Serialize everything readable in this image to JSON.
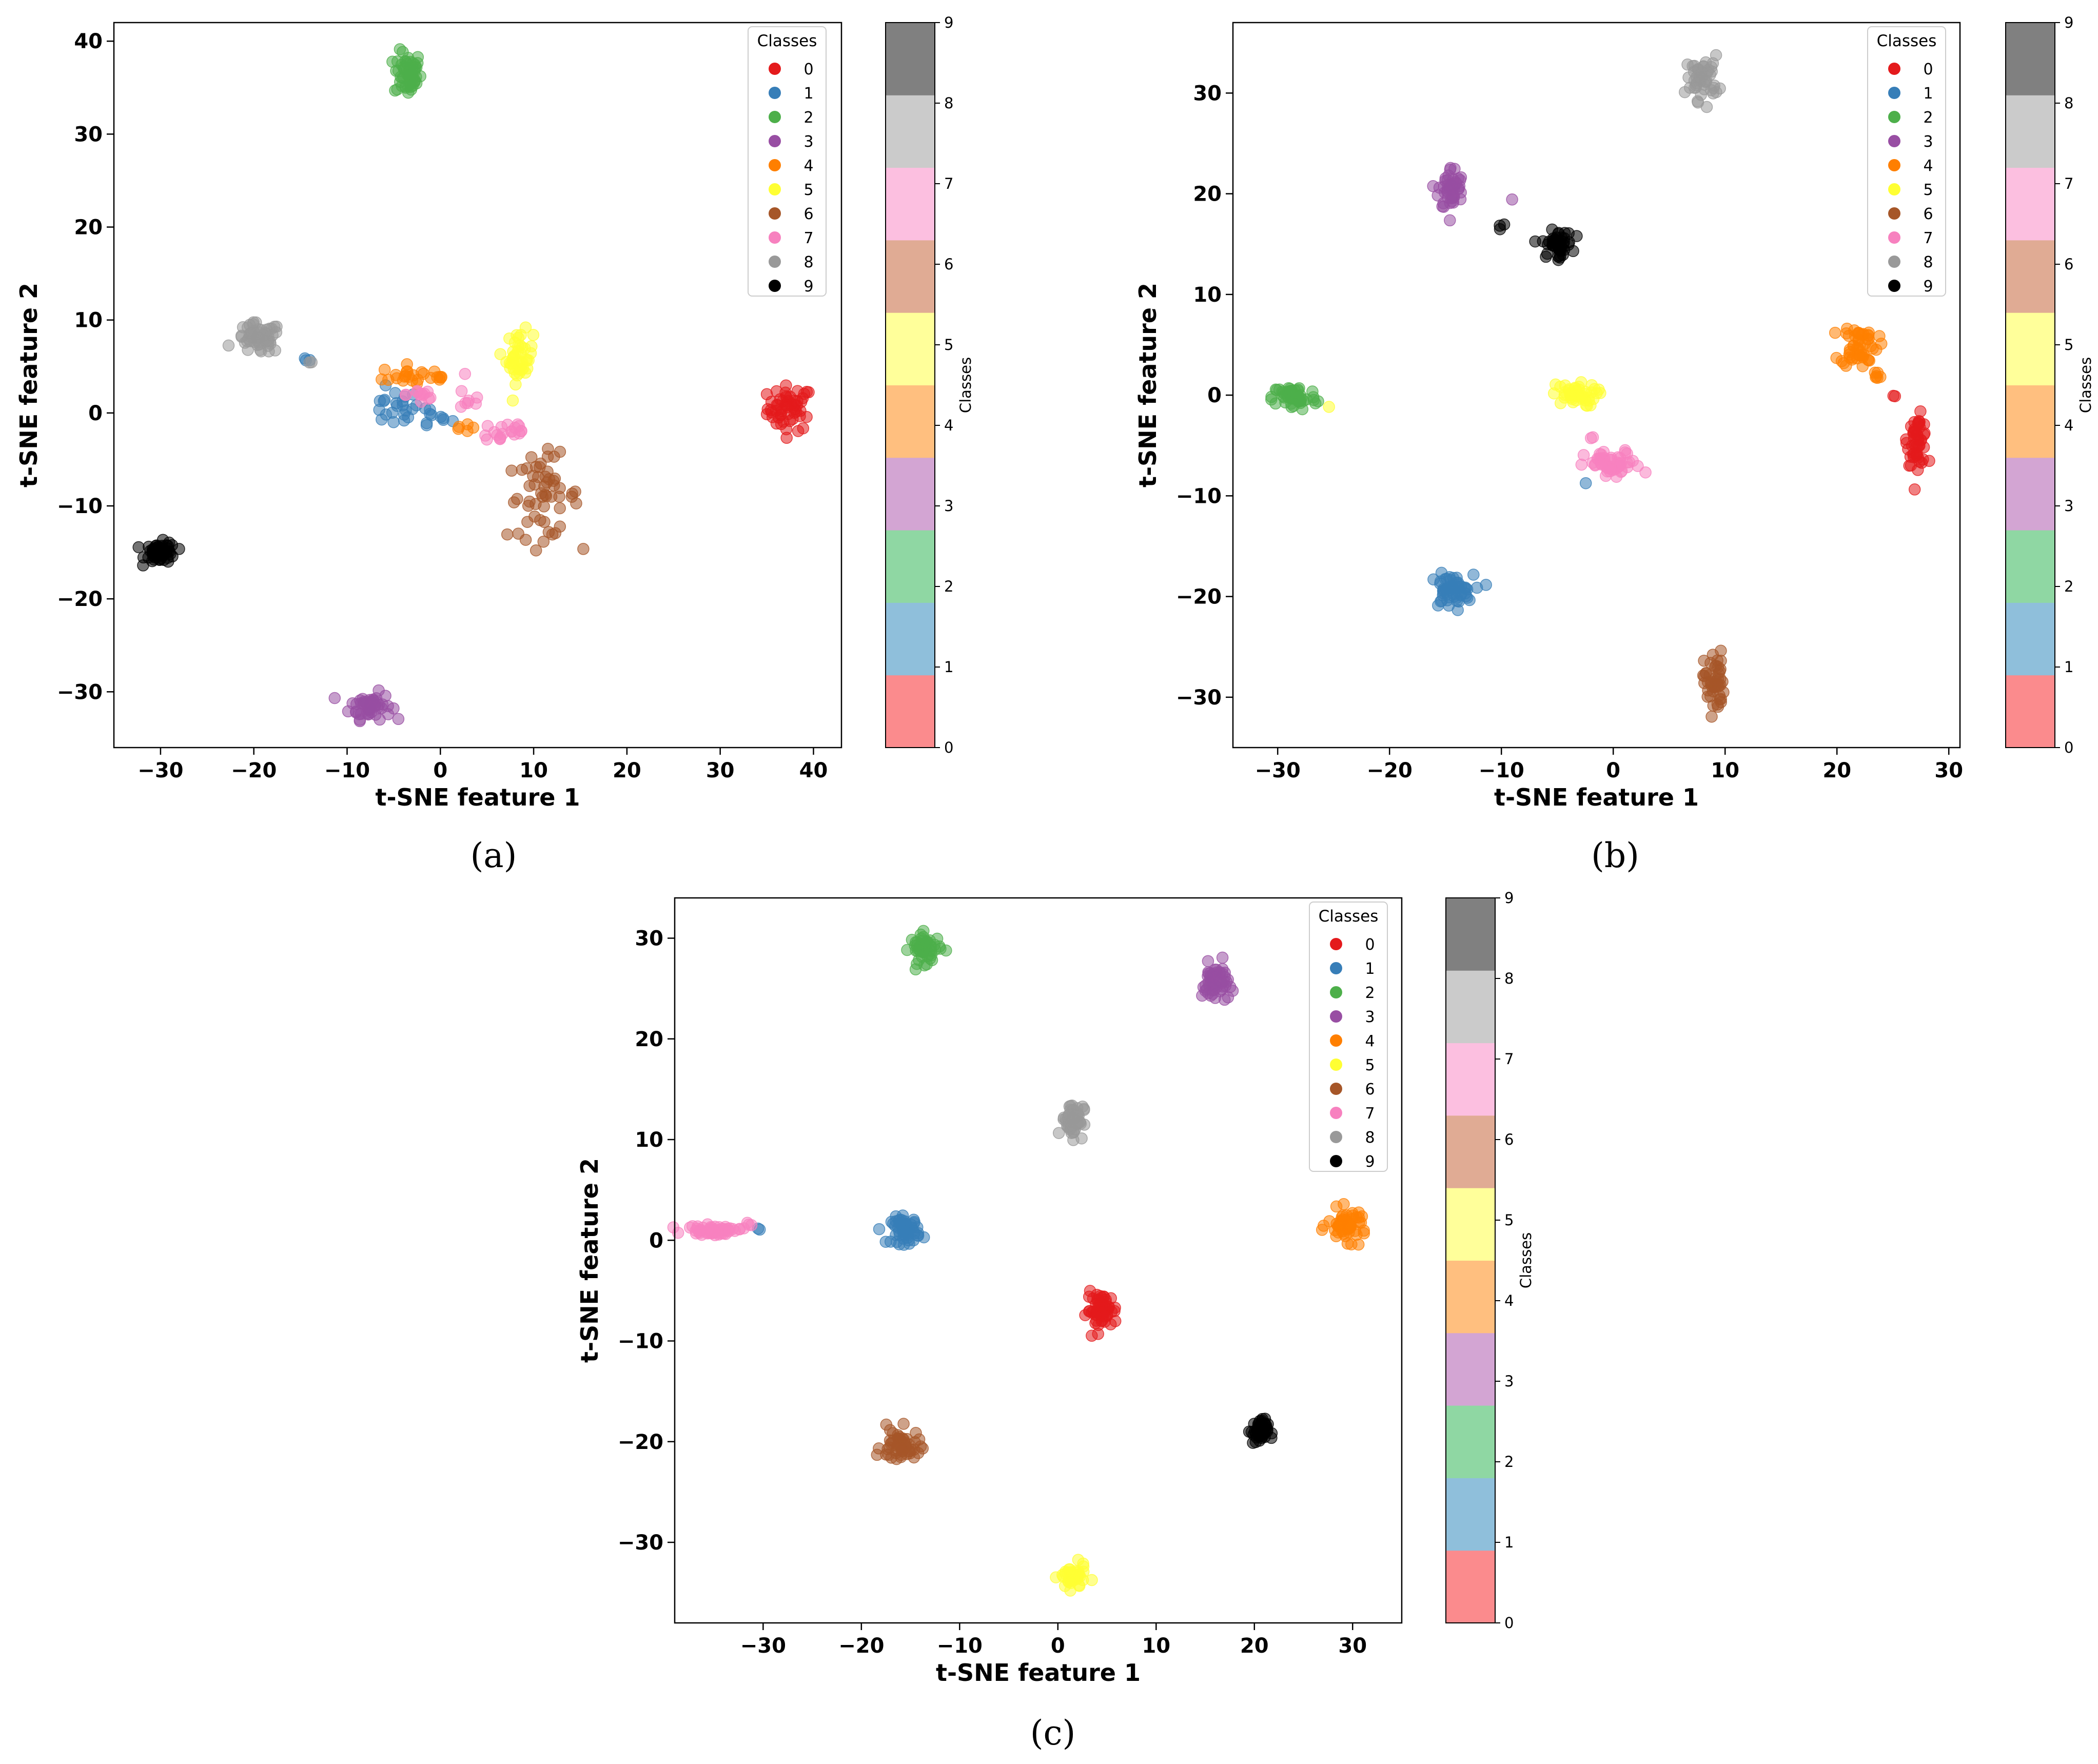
{
  "colors": {
    "classes": [
      "#e41a1c",
      "#377eb8",
      "#4daf4a",
      "#984ea3",
      "#ff7f00",
      "#ffff33",
      "#a65628",
      "#f781bf",
      "#999999",
      "#000000"
    ],
    "colorbar": [
      "#fb8b8d",
      "#8fbfdb",
      "#8fd7a3",
      "#d3a5d3",
      "#ffbf7f",
      "#ffff9a",
      "#e0ab94",
      "#fcbfe0",
      "#cbcbcb",
      "#808080"
    ]
  },
  "chart_data": [
    {
      "type": "scatter",
      "caption": "(a)",
      "xlabel": "t-SNE feature 1",
      "ylabel": "t-SNE feature 2",
      "xlim": [
        -35,
        43
      ],
      "ylim": [
        -36,
        42
      ],
      "xticks": [
        -30,
        -20,
        -10,
        0,
        10,
        20,
        30,
        40
      ],
      "yticks": [
        -30,
        -20,
        -10,
        0,
        10,
        20,
        30,
        40
      ],
      "xtick_labels": [
        "−30",
        "−20",
        "−10",
        "0",
        "10",
        "20",
        "30",
        "40"
      ],
      "ytick_labels": [
        "−30",
        "−20",
        "−10",
        "0",
        "10",
        "20",
        "30",
        "40"
      ],
      "legend": {
        "title": "Classes",
        "labels": [
          "0",
          "1",
          "2",
          "3",
          "4",
          "5",
          "6",
          "7",
          "8",
          "9"
        ],
        "placement": "top-right"
      },
      "colorbar": {
        "label": "Classes",
        "ticks": [
          "0",
          "1",
          "2",
          "3",
          "4",
          "5",
          "6",
          "7",
          "8",
          "9"
        ]
      },
      "clusters": [
        {
          "class": 0,
          "cx": 37.5,
          "cy": 0.5,
          "rx": 2.2,
          "ry": 2.2,
          "n": 55
        },
        {
          "class": 1,
          "cx": -5,
          "cy": 0.5,
          "rx": 2.5,
          "ry": 1.8,
          "n": 22
        },
        {
          "class": 1,
          "cx": -1,
          "cy": -0.5,
          "rx": 2,
          "ry": 1.2,
          "n": 10
        },
        {
          "class": 1,
          "cx": -14.5,
          "cy": 5.5,
          "rx": 0.6,
          "ry": 0.4,
          "n": 3
        },
        {
          "class": 2,
          "cx": -3.5,
          "cy": 36.5,
          "rx": 1.3,
          "ry": 2.2,
          "n": 55
        },
        {
          "class": 3,
          "cx": -7.5,
          "cy": -31.5,
          "rx": 2,
          "ry": 1.3,
          "n": 55
        },
        {
          "class": 4,
          "cx": -3.5,
          "cy": 4,
          "rx": 2.5,
          "ry": 1,
          "n": 20
        },
        {
          "class": 4,
          "cx": 2,
          "cy": -1.5,
          "rx": 1,
          "ry": 0.5,
          "n": 5
        },
        {
          "class": 4,
          "cx": 0,
          "cy": 3.5,
          "rx": 0.8,
          "ry": 0.8,
          "n": 5
        },
        {
          "class": 5,
          "cx": 8.5,
          "cy": 6,
          "rx": 1.3,
          "ry": 2.5,
          "n": 45
        },
        {
          "class": 6,
          "cx": 11,
          "cy": -9,
          "rx": 3.5,
          "ry": 4,
          "n": 55
        },
        {
          "class": 7,
          "cx": 7,
          "cy": -2,
          "rx": 2.5,
          "ry": 1.3,
          "n": 20
        },
        {
          "class": 7,
          "cx": -2,
          "cy": 2,
          "rx": 1.5,
          "ry": 1.3,
          "n": 12
        },
        {
          "class": 7,
          "cx": 3,
          "cy": 1.5,
          "rx": 1.5,
          "ry": 1.5,
          "n": 8
        },
        {
          "class": 8,
          "cx": -19.5,
          "cy": 8,
          "rx": 2.2,
          "ry": 1.5,
          "n": 55
        },
        {
          "class": 8,
          "cx": -14,
          "cy": 5.5,
          "rx": 0.3,
          "ry": 0.3,
          "n": 2
        },
        {
          "class": 9,
          "cx": -30,
          "cy": -15,
          "rx": 1.5,
          "ry": 1,
          "n": 55
        }
      ]
    },
    {
      "type": "scatter",
      "caption": "(b)",
      "xlabel": "t-SNE feature 1",
      "ylabel": "t-SNE feature 2",
      "xlim": [
        -34,
        31
      ],
      "ylim": [
        -35,
        37
      ],
      "xticks": [
        -30,
        -20,
        -10,
        0,
        10,
        20,
        30
      ],
      "yticks": [
        -30,
        -20,
        -10,
        0,
        10,
        20,
        30
      ],
      "xtick_labels": [
        "−30",
        "−20",
        "−10",
        "0",
        "10",
        "20",
        "30"
      ],
      "ytick_labels": [
        "−30",
        "−20",
        "−10",
        "0",
        "10",
        "20",
        "30"
      ],
      "legend": {
        "title": "Classes",
        "labels": [
          "0",
          "1",
          "2",
          "3",
          "4",
          "5",
          "6",
          "7",
          "8",
          "9"
        ],
        "placement": "top-right"
      },
      "colorbar": {
        "label": "Classes",
        "ticks": [
          "0",
          "1",
          "2",
          "3",
          "4",
          "5",
          "6",
          "7",
          "8",
          "9"
        ]
      },
      "clusters": [
        {
          "class": 0,
          "cx": 27.2,
          "cy": -4.5,
          "rx": 0.8,
          "ry": 2.2,
          "n": 50
        },
        {
          "class": 0,
          "cx": 25,
          "cy": 0,
          "rx": 0.3,
          "ry": 0.3,
          "n": 2
        },
        {
          "class": 1,
          "cx": -14.5,
          "cy": -19.5,
          "rx": 1.8,
          "ry": 1.5,
          "n": 55
        },
        {
          "class": 1,
          "cx": -2.5,
          "cy": -8.8,
          "rx": 0.2,
          "ry": 0.2,
          "n": 1
        },
        {
          "class": 2,
          "cx": -28.5,
          "cy": -0.2,
          "rx": 1.8,
          "ry": 1.2,
          "n": 55
        },
        {
          "class": 3,
          "cx": -14.5,
          "cy": 20.5,
          "rx": 1,
          "ry": 2,
          "n": 50
        },
        {
          "class": 3,
          "cx": -9,
          "cy": 19.5,
          "rx": 0.2,
          "ry": 0.2,
          "n": 1
        },
        {
          "class": 4,
          "cx": 22,
          "cy": 5,
          "rx": 1.5,
          "ry": 2,
          "n": 50
        },
        {
          "class": 4,
          "cx": 23.5,
          "cy": 2,
          "rx": 0.6,
          "ry": 0.6,
          "n": 6
        },
        {
          "class": 5,
          "cx": -3.5,
          "cy": 0,
          "rx": 1.8,
          "ry": 1,
          "n": 45
        },
        {
          "class": 5,
          "cx": -25.5,
          "cy": -1,
          "rx": 0.2,
          "ry": 0.2,
          "n": 1
        },
        {
          "class": 6,
          "cx": 9,
          "cy": -28.5,
          "rx": 0.8,
          "ry": 2.8,
          "n": 50
        },
        {
          "class": 7,
          "cx": 0,
          "cy": -7,
          "rx": 2.3,
          "ry": 1.3,
          "n": 50
        },
        {
          "class": 7,
          "cx": -2,
          "cy": -4,
          "rx": 0.3,
          "ry": 0.3,
          "n": 2
        },
        {
          "class": 8,
          "cx": 8,
          "cy": 31.5,
          "rx": 1.3,
          "ry": 2,
          "n": 50
        },
        {
          "class": 9,
          "cx": -5,
          "cy": 15,
          "rx": 1.2,
          "ry": 1.2,
          "n": 50
        },
        {
          "class": 9,
          "cx": -10,
          "cy": 17,
          "rx": 0.5,
          "ry": 0.3,
          "n": 3
        }
      ]
    },
    {
      "type": "scatter",
      "caption": "(c)",
      "xlabel": "t-SNE feature 1",
      "ylabel": "t-SNE feature 2",
      "xlim": [
        -39,
        35
      ],
      "ylim": [
        -38,
        34
      ],
      "xticks": [
        -30,
        -20,
        -10,
        0,
        10,
        20,
        30
      ],
      "yticks": [
        -30,
        -20,
        -10,
        0,
        10,
        20,
        30
      ],
      "xtick_labels": [
        "−30",
        "−20",
        "−10",
        "0",
        "10",
        "20",
        "30"
      ],
      "ytick_labels": [
        "−30",
        "−20",
        "−10",
        "0",
        "10",
        "20",
        "30"
      ],
      "legend": {
        "title": "Classes",
        "labels": [
          "0",
          "1",
          "2",
          "3",
          "4",
          "5",
          "6",
          "7",
          "8",
          "9"
        ],
        "placement": "top-right"
      },
      "colorbar": {
        "label": "Classes",
        "ticks": [
          "0",
          "1",
          "2",
          "3",
          "4",
          "5",
          "6",
          "7",
          "8",
          "9"
        ]
      },
      "clusters": [
        {
          "class": 0,
          "cx": 4.5,
          "cy": -7,
          "rx": 1.4,
          "ry": 1.6,
          "n": 55
        },
        {
          "class": 1,
          "cx": -15.5,
          "cy": 1,
          "rx": 1.3,
          "ry": 1.2,
          "n": 55
        },
        {
          "class": 1,
          "cx": -30.5,
          "cy": 1,
          "rx": 0.3,
          "ry": 0.3,
          "n": 2
        },
        {
          "class": 2,
          "cx": -13.5,
          "cy": 29,
          "rx": 1.4,
          "ry": 1.3,
          "n": 55
        },
        {
          "class": 3,
          "cx": 16,
          "cy": 25.5,
          "rx": 1.2,
          "ry": 1.8,
          "n": 55
        },
        {
          "class": 4,
          "cx": 29.5,
          "cy": 1.5,
          "rx": 1.8,
          "ry": 1.4,
          "n": 55
        },
        {
          "class": 5,
          "cx": 1.5,
          "cy": -33.5,
          "rx": 1.2,
          "ry": 1.1,
          "n": 45
        },
        {
          "class": 6,
          "cx": -16,
          "cy": -20.5,
          "rx": 1.8,
          "ry": 1.6,
          "n": 55
        },
        {
          "class": 7,
          "cx": -35,
          "cy": 1,
          "rx": 2.5,
          "ry": 0.4,
          "n": 55
        },
        {
          "class": 7,
          "cx": -31.5,
          "cy": 1.8,
          "rx": 0.3,
          "ry": 0.3,
          "n": 3
        },
        {
          "class": 8,
          "cx": 1.5,
          "cy": 12,
          "rx": 1,
          "ry": 1.6,
          "n": 55
        },
        {
          "class": 9,
          "cx": 20.5,
          "cy": -19,
          "rx": 0.8,
          "ry": 1.1,
          "n": 50
        }
      ]
    }
  ]
}
